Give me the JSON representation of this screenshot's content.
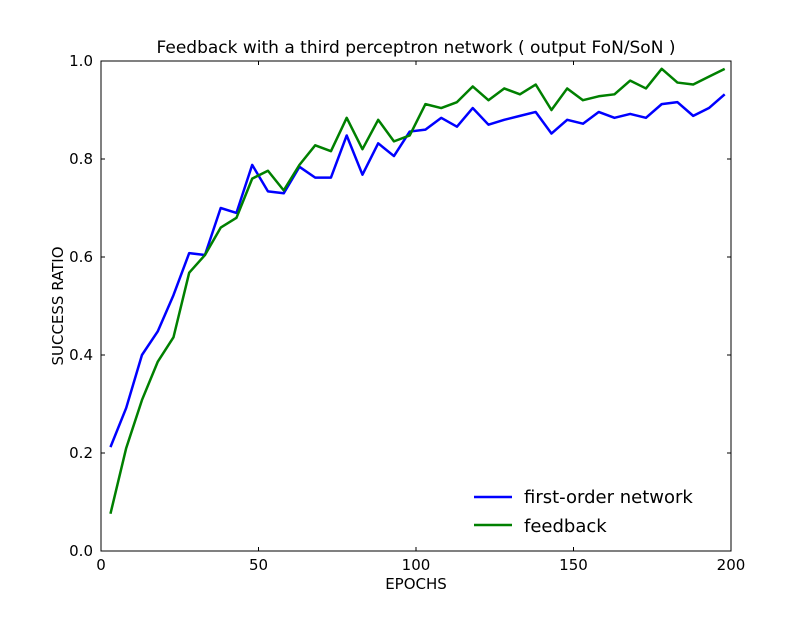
{
  "chart_data": {
    "type": "line",
    "title": "Feedback with a third perceptron network ( output FoN/SoN )",
    "xlabel": "EPOCHS",
    "ylabel": "SUCCESS RATIO",
    "xlim": [
      0,
      200
    ],
    "ylim": [
      0.0,
      1.0
    ],
    "xticks": [
      "0",
      "50",
      "100",
      "150",
      "200"
    ],
    "yticks": [
      "0.0",
      "0.2",
      "0.4",
      "0.6",
      "0.8",
      "1.0"
    ],
    "grid": false,
    "legend_position": "lower-right",
    "x": [
      3,
      8,
      13,
      18,
      23,
      28,
      33,
      38,
      43,
      48,
      53,
      58,
      63,
      68,
      73,
      78,
      83,
      88,
      93,
      98,
      103,
      108,
      113,
      118,
      123,
      128,
      133,
      138,
      143,
      148,
      153,
      158,
      163,
      168,
      173,
      178,
      183,
      188,
      193,
      198
    ],
    "series": [
      {
        "name": "first-order network",
        "color": "#0000ff",
        "values": [
          0.212,
          0.292,
          0.4,
          0.448,
          0.522,
          0.608,
          0.604,
          0.7,
          0.69,
          0.788,
          0.734,
          0.73,
          0.784,
          0.762,
          0.762,
          0.848,
          0.768,
          0.832,
          0.806,
          0.856,
          0.86,
          0.884,
          0.866,
          0.904,
          0.87,
          0.88,
          0.888,
          0.896,
          0.852,
          0.88,
          0.872,
          0.896,
          0.884,
          0.892,
          0.884,
          0.912,
          0.916,
          0.888,
          0.904,
          0.932
        ]
      },
      {
        "name": "feedback",
        "color": "#008000",
        "values": [
          0.076,
          0.21,
          0.308,
          0.386,
          0.436,
          0.568,
          0.604,
          0.66,
          0.68,
          0.76,
          0.776,
          0.736,
          0.788,
          0.828,
          0.816,
          0.884,
          0.82,
          0.88,
          0.836,
          0.848,
          0.912,
          0.904,
          0.916,
          0.948,
          0.92,
          0.944,
          0.932,
          0.952,
          0.9,
          0.944,
          0.92,
          0.928,
          0.932,
          0.96,
          0.944,
          0.984,
          0.956,
          0.952,
          0.968,
          0.984
        ]
      }
    ]
  }
}
